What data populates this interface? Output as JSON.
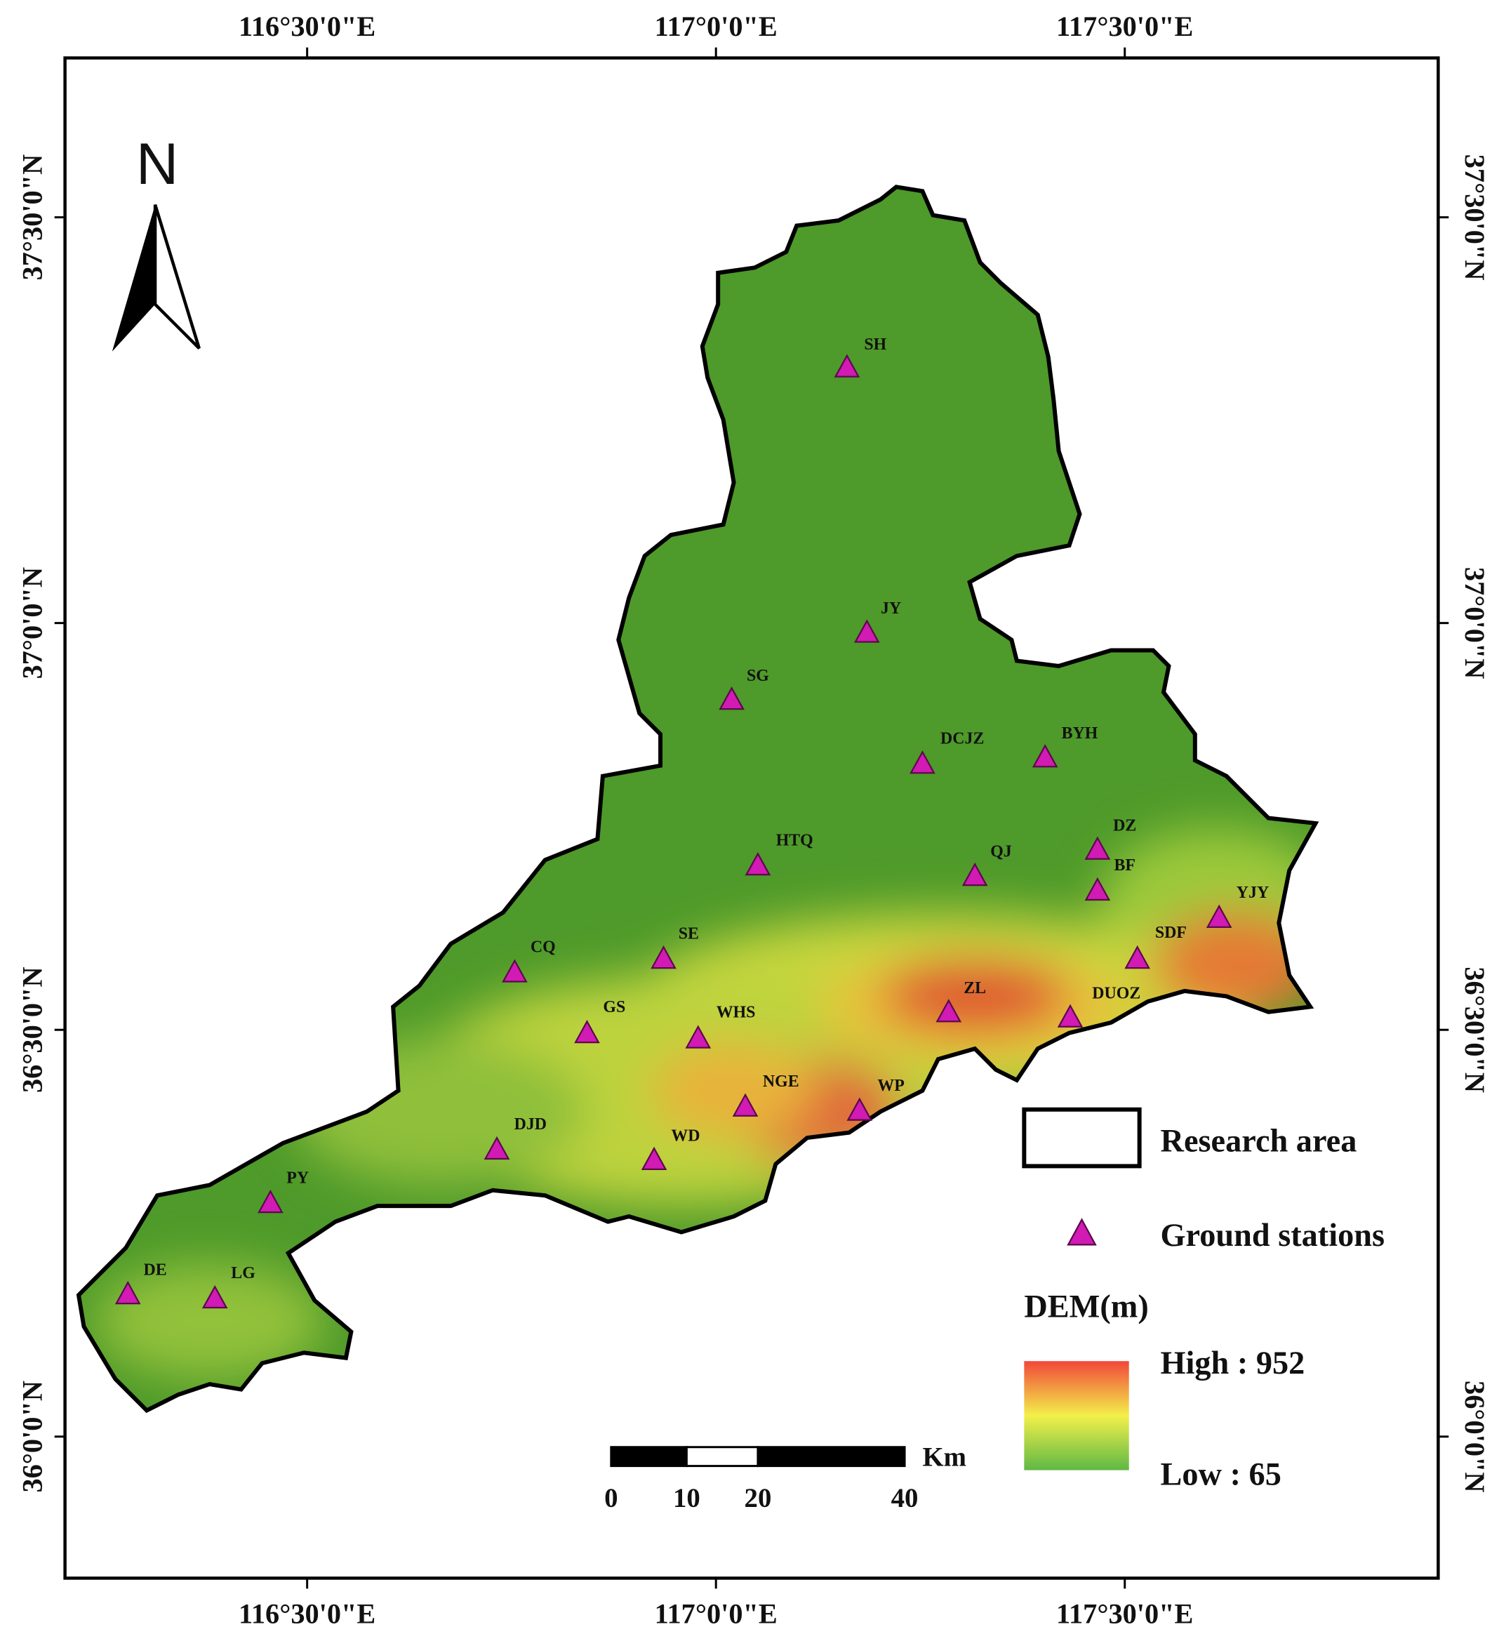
{
  "map": {
    "north_label": "N",
    "longitude_labels": [
      "116°30'0\"E",
      "117°0'0\"E",
      "117°30'0\"E"
    ],
    "latitude_labels": [
      "37°30'0\"N",
      "37°0'0\"N",
      "36°30'0\"N",
      "36°0'0\"N"
    ],
    "stations": [
      "SH",
      "JY",
      "SG",
      "DCJZ",
      "BYH",
      "HTQ",
      "QJ",
      "DZ",
      "BF",
      "YJY",
      "SDF",
      "SE",
      "CQ",
      "ZL",
      "DUOZ",
      "GS",
      "WHS",
      "NGE",
      "WP",
      "DJD",
      "WD",
      "PY",
      "DE",
      "LG"
    ],
    "legend": {
      "research_area": "Research area",
      "ground_stations": "Ground stations",
      "dem_title": "DEM(m)",
      "high": "High : 952",
      "low": "Low : 65"
    },
    "scale_bar": {
      "labels": [
        "0",
        "10",
        "20",
        "40"
      ],
      "unit": "Km"
    }
  }
}
